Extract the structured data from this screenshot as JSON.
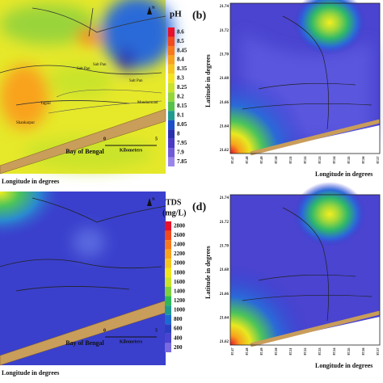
{
  "panel_a": {
    "legend_title": "pH",
    "legend_values": [
      8.6,
      8.5,
      8.45,
      8.4,
      8.35,
      8.3,
      8.25,
      8.2,
      8.15,
      8.1,
      8.05,
      8,
      7.95,
      7.9,
      7.85
    ],
    "legend_colors": [
      "#e8102a",
      "#f24a1c",
      "#f7791a",
      "#f9a21c",
      "#f7c61e",
      "#f2e51f",
      "#c9e32a",
      "#94d63a",
      "#55c24a",
      "#1f9a8e",
      "#1b4fc9",
      "#2a2fae",
      "#4a3ac4",
      "#6f5ad8",
      "#9a86e8"
    ],
    "sea_label": "Bay of Bengal",
    "scale_start": "0",
    "scale_end": "5",
    "scale_unit": "Kilometers",
    "north": "N",
    "places": [
      "Salt Pan",
      "Salt Pan",
      "Salt Pan",
      "Tajpur",
      "Shankarpur",
      "Mandarmani"
    ],
    "x_axis_label": "Longitude in degrees"
  },
  "panel_b": {
    "label": "(b)",
    "y_axis_label": "Latitude in degrees",
    "x_axis_label": "Longitude in degrees",
    "y_ticks": [
      "21.74",
      "21.72",
      "21.70",
      "21.68",
      "21.66",
      "21.64",
      "21.62"
    ],
    "x_ticks": [
      "87.47",
      "87.48",
      "87.49",
      "87.50",
      "87.51",
      "87.52",
      "87.53",
      "87.54",
      "87.55",
      "87.56",
      "87.57"
    ]
  },
  "panel_c": {
    "legend_title": [
      "TDS",
      "(mg/L)"
    ],
    "legend_values": [
      2800,
      2600,
      2400,
      2200,
      2000,
      1800,
      1600,
      1400,
      1200,
      1000,
      800,
      600,
      400,
      200
    ],
    "legend_colors": [
      "#e8102a",
      "#f24a1c",
      "#f7791a",
      "#f9a21c",
      "#f7c61e",
      "#f2e51f",
      "#c9e32a",
      "#7fd040",
      "#2fb85a",
      "#1f9a8e",
      "#1b6ad0",
      "#2a3fc0",
      "#4a44d0",
      "#7a6ae0"
    ],
    "sea_label": "Bay of Bengal",
    "scale_start": "0",
    "scale_end": "5",
    "scale_unit": "Kilometers",
    "north": "N",
    "x_axis_label": "Longitude in degrees"
  },
  "panel_d": {
    "label": "(d)",
    "y_axis_label": "Latitude in degrees",
    "x_axis_label": "Longitude in degrees",
    "y_ticks": [
      "21.74",
      "21.72",
      "21.70",
      "21.68",
      "21.66",
      "21.64",
      "21.62"
    ],
    "x_ticks": [
      "87.47",
      "87.48",
      "87.49",
      "87.50",
      "87.51",
      "87.52",
      "87.53",
      "87.54",
      "87.55",
      "87.56",
      "87.57"
    ]
  }
}
